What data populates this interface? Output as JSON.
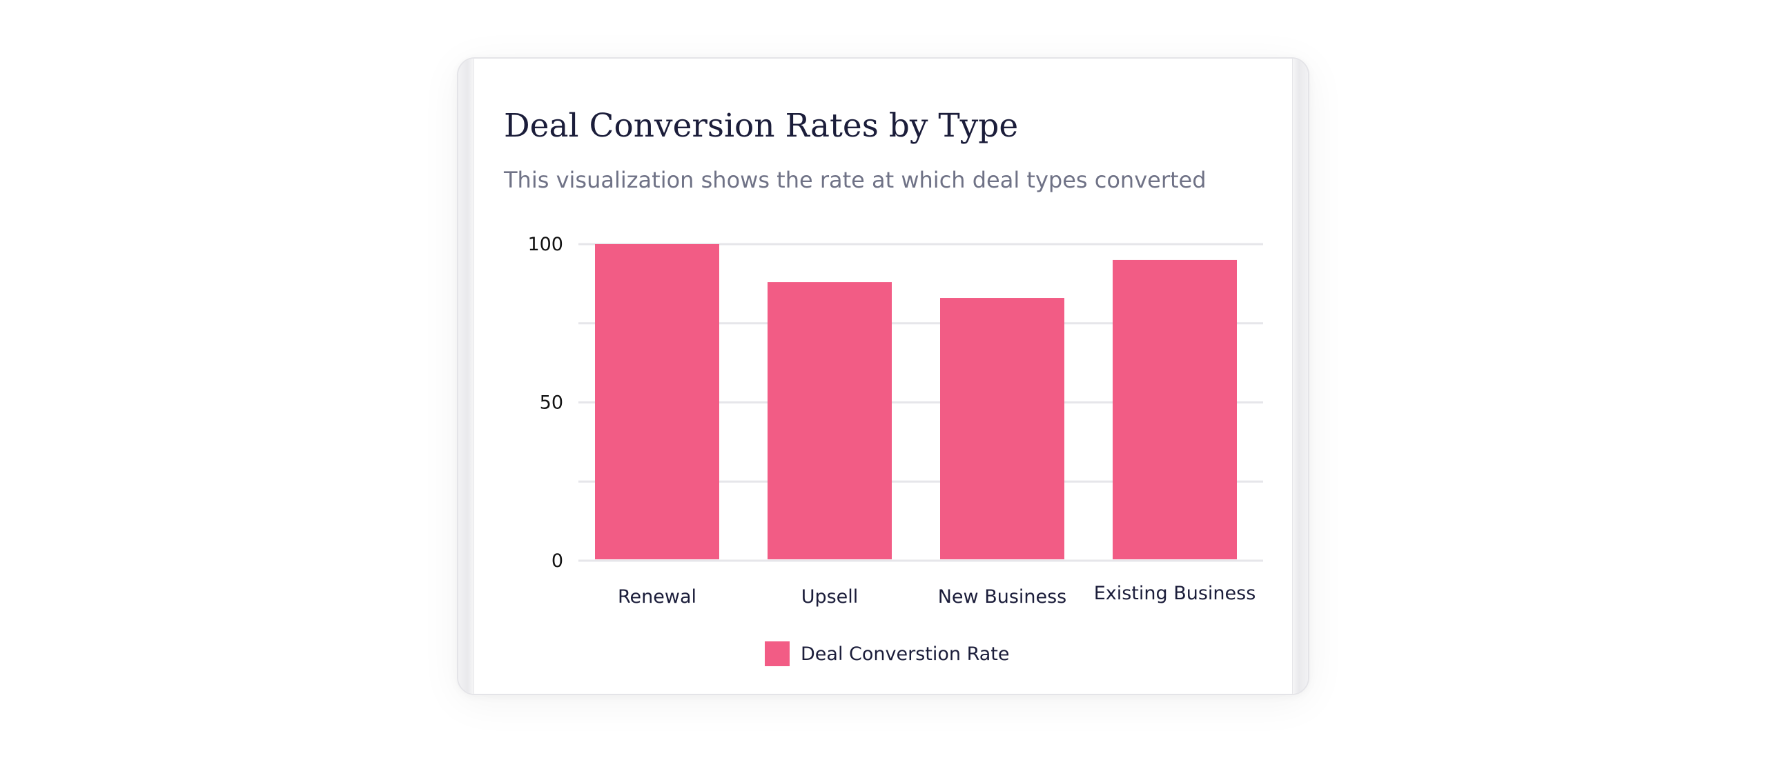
{
  "title": "Deal Conversion Rates by Type",
  "subtitle": "This visualization shows the rate at which deal types converted",
  "colors": {
    "bar": "#f25c85",
    "grid": "#e6e6ea",
    "title": "#1b1d3a",
    "subtitle": "#6f7286"
  },
  "chart_data": {
    "type": "bar",
    "categories": [
      "Renewal",
      "Upsell",
      "New Business",
      "Existing Business"
    ],
    "series": [
      {
        "name": "Deal Converstion Rate",
        "values": [
          100,
          88,
          83,
          95
        ]
      }
    ],
    "ylim": [
      0,
      100
    ],
    "yticks": [
      0,
      50,
      100
    ],
    "grid_values": [
      0,
      25,
      50,
      75,
      100
    ],
    "grid": true,
    "legend": "bottom-center",
    "xlabel": "",
    "ylabel": ""
  }
}
